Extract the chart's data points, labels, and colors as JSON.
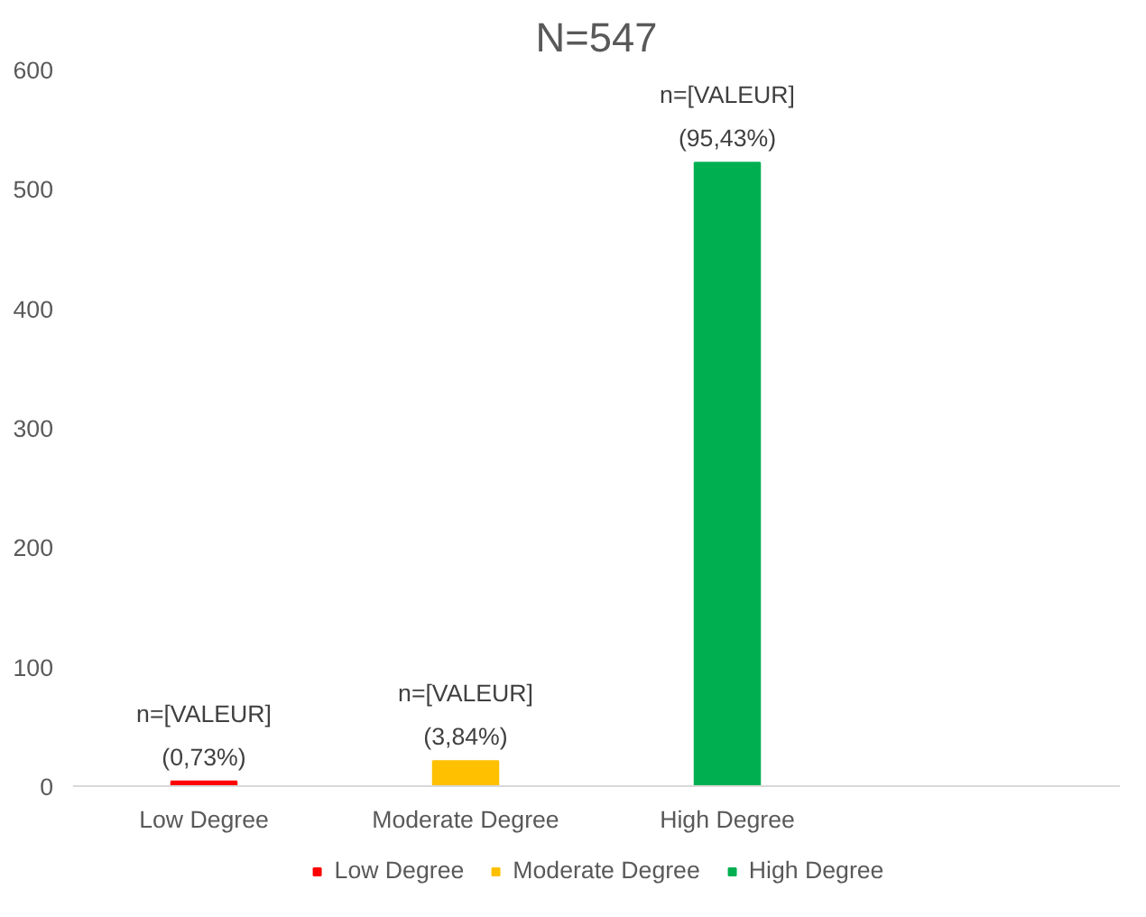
{
  "chart_data": {
    "type": "bar",
    "title": "N=547",
    "stacked": true,
    "categories": [
      "Low Degree",
      "Moderate Degree",
      "High Degree",
      null
    ],
    "series": [
      {
        "name": "Low Degree",
        "color": "#ff0000",
        "values": [
          4,
          null,
          null,
          null
        ]
      },
      {
        "name": "Moderate Degree",
        "color": "#ffc000",
        "values": [
          null,
          21,
          null,
          null
        ]
      },
      {
        "name": "High Degree",
        "color": "#00b050",
        "values": [
          null,
          null,
          522,
          null
        ]
      }
    ],
    "annotations": [
      {
        "text": "n=[VALEUR]\n(0,73%)",
        "x": "Low Degree",
        "y": 4
      },
      {
        "text": "n=[VALEUR]\n(3,84%)",
        "x": "Moderate Degree",
        "y": 21
      },
      {
        "text": "n=[VALEUR]\n(95,43%)",
        "x": "High Degree",
        "y": 522
      }
    ],
    "ylim": [
      0,
      600
    ],
    "yticks": [
      0,
      100,
      200,
      300,
      400,
      500,
      600
    ],
    "grid": false,
    "legend": "bottom"
  }
}
